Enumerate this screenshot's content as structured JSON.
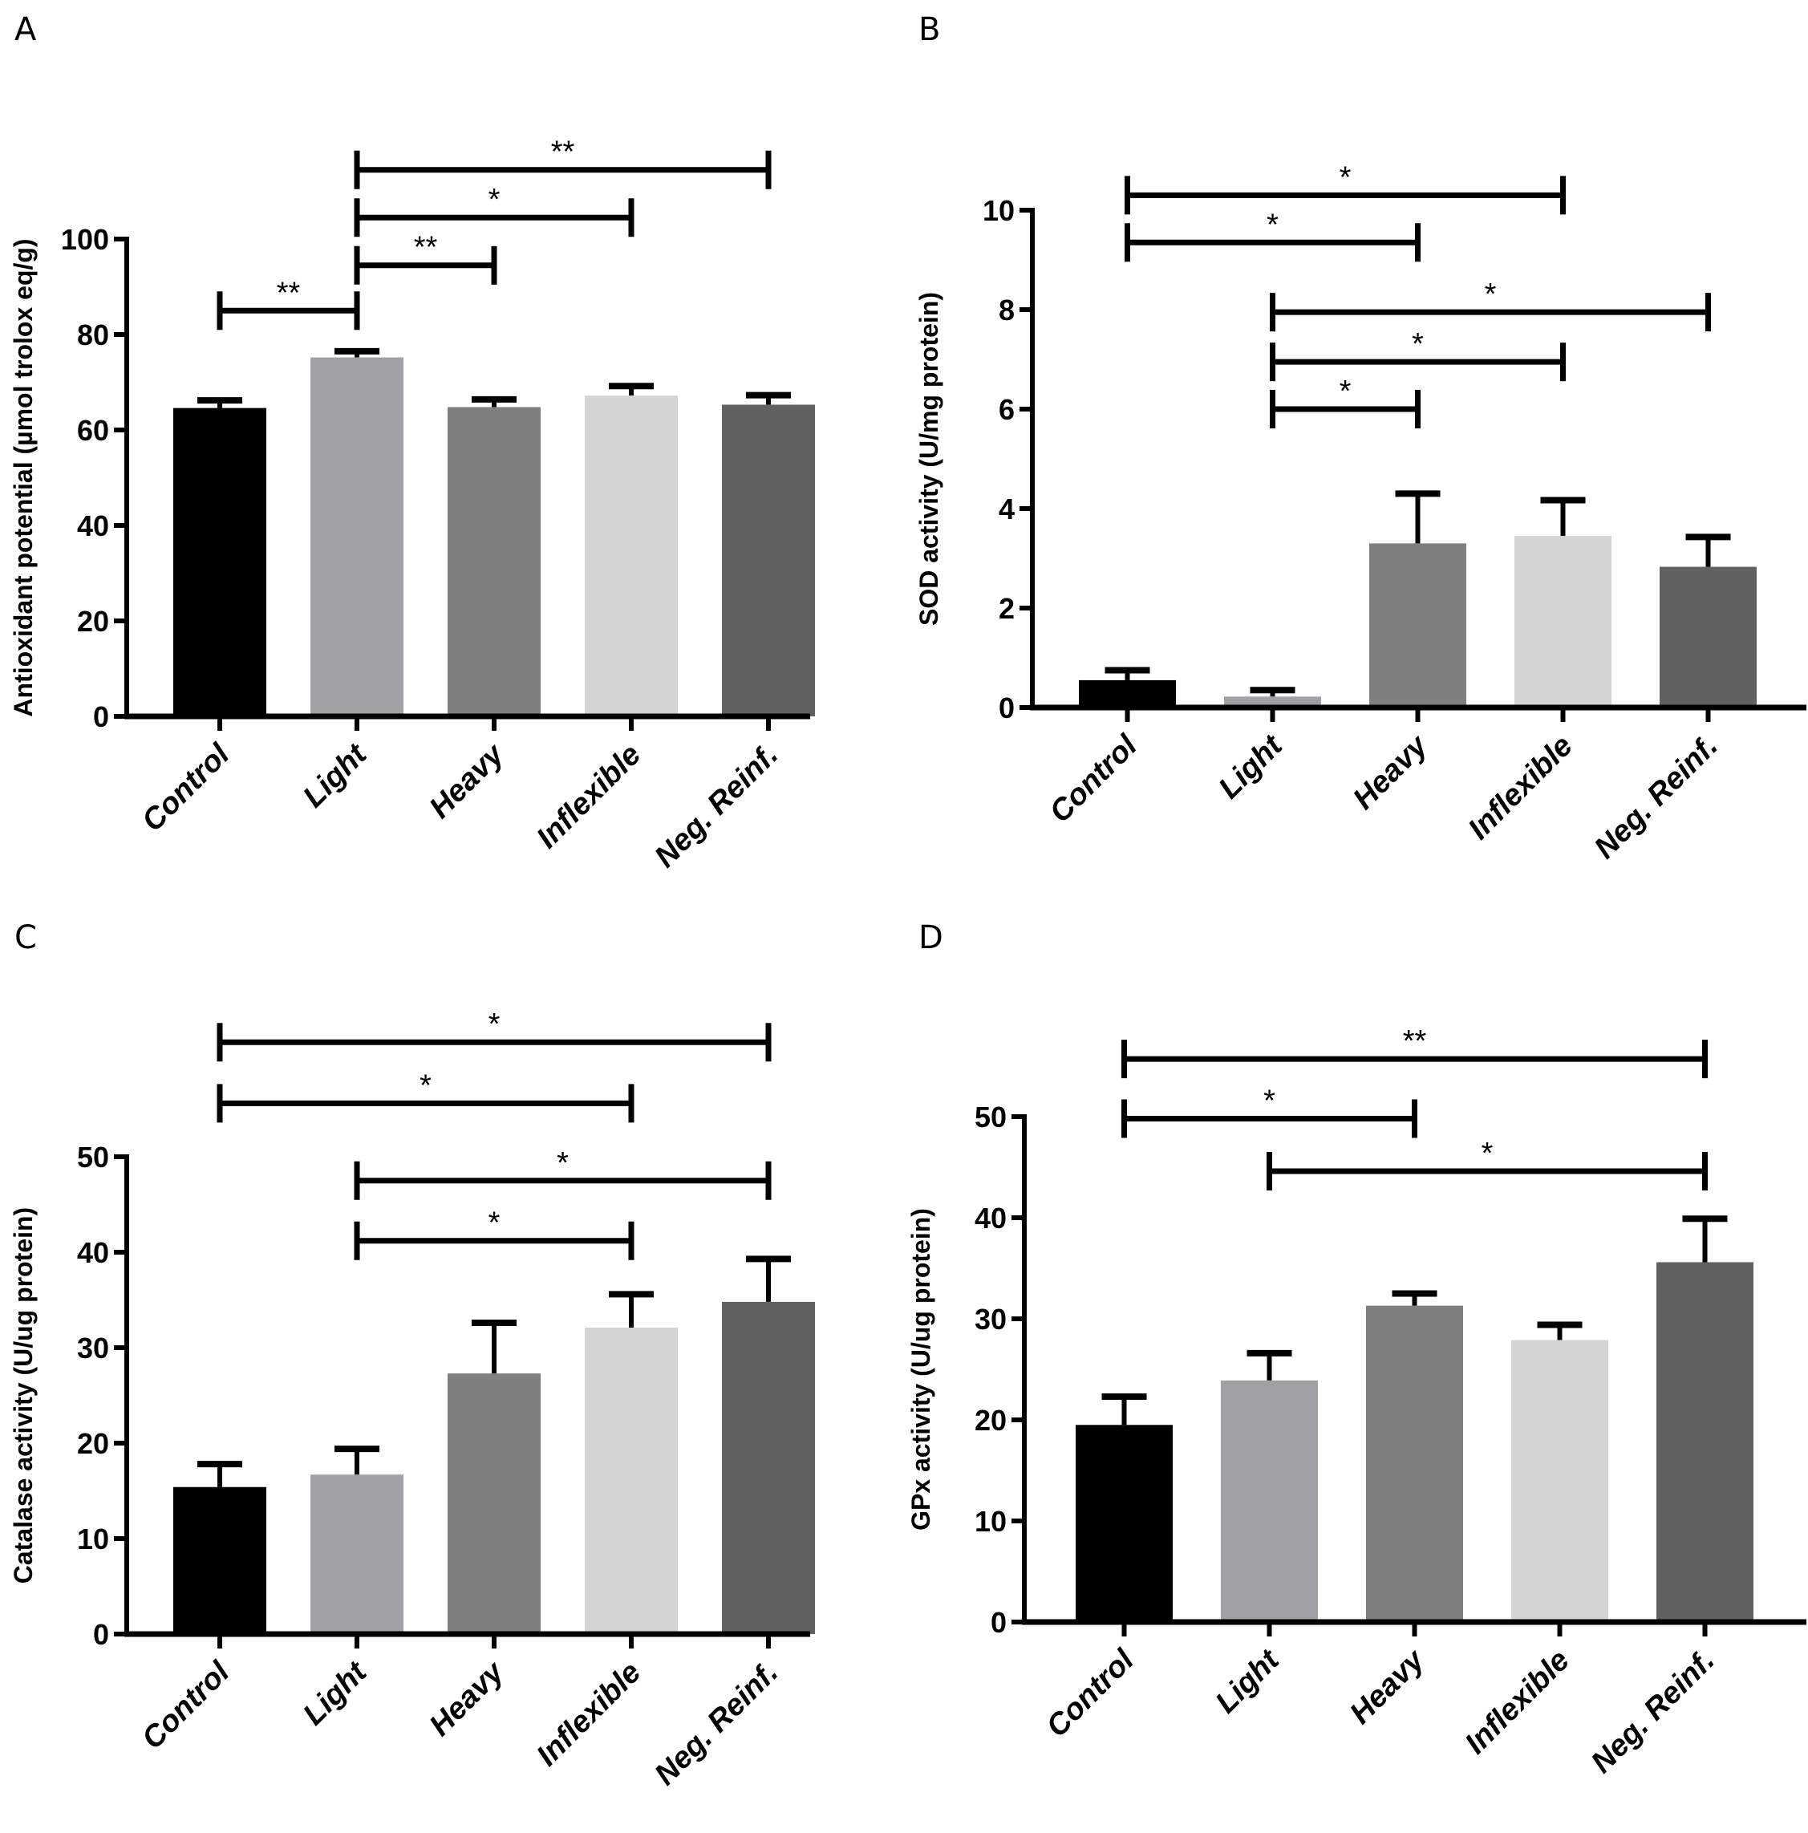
{
  "figure": {
    "panels": [
      "A",
      "B",
      "C",
      "D"
    ]
  },
  "chart_data": [
    {
      "panel_label": "A",
      "type": "bar",
      "title": "",
      "xlabel": "",
      "ylabel": "Antioxidant potential (µmol trolox eq/g)",
      "categories": [
        "Control",
        "Light",
        "Heavy",
        "Inflexible",
        "Neg. Reinf."
      ],
      "values": [
        64.6,
        75.2,
        64.8,
        67.2,
        65.3
      ],
      "errors": [
        1.6,
        1.3,
        1.6,
        2.0,
        2.0
      ],
      "colors": [
        "#000000",
        "#a1a1a5",
        "#7f7f7f",
        "#d4d4d4",
        "#616161"
      ],
      "ylim": [
        0,
        100
      ],
      "yticks": [
        0,
        20,
        40,
        60,
        80,
        100
      ],
      "grid": false,
      "significance": [
        {
          "from": 0,
          "to": 1,
          "y": 85,
          "label": "**"
        },
        {
          "from": 1,
          "to": 2,
          "y": 94.5,
          "label": "**"
        },
        {
          "from": 1,
          "to": 3,
          "y": 104.5,
          "label": "*"
        },
        {
          "from": 1,
          "to": 4,
          "y": 114.5,
          "label": "**"
        }
      ]
    },
    {
      "panel_label": "B",
      "type": "bar",
      "title": "",
      "xlabel": "",
      "ylabel": "SOD activity (U/mg protein)",
      "categories": [
        "Control",
        "Light",
        "Heavy",
        "Inflexible",
        "Neg. Reinf."
      ],
      "values": [
        0.55,
        0.22,
        3.3,
        3.45,
        2.83
      ],
      "errors": [
        0.2,
        0.13,
        1.0,
        0.72,
        0.6
      ],
      "colors": [
        "#000000",
        "#a1a1a5",
        "#7f7f7f",
        "#d4d4d4",
        "#616161"
      ],
      "ylim": [
        0,
        10
      ],
      "yticks": [
        0,
        2,
        4,
        6,
        8,
        10
      ],
      "grid": false,
      "significance": [
        {
          "from": 0,
          "to": 3,
          "y": 10.3,
          "label": "*"
        },
        {
          "from": 0,
          "to": 2,
          "y": 9.35,
          "label": "*"
        },
        {
          "from": 1,
          "to": 4,
          "y": 7.95,
          "label": "*"
        },
        {
          "from": 1,
          "to": 3,
          "y": 6.95,
          "label": "*"
        },
        {
          "from": 1,
          "to": 2,
          "y": 6.0,
          "label": "*"
        }
      ]
    },
    {
      "panel_label": "C",
      "type": "bar",
      "title": "",
      "xlabel": "",
      "ylabel": "Catalase activity (U/ug protein)",
      "categories": [
        "Control",
        "Light",
        "Heavy",
        "Inflexible",
        "Neg. Reinf."
      ],
      "values": [
        15.4,
        16.7,
        27.3,
        32.1,
        34.8
      ],
      "errors": [
        2.4,
        2.7,
        5.3,
        3.5,
        4.5
      ],
      "colors": [
        "#000000",
        "#a1a1a5",
        "#7f7f7f",
        "#d4d4d4",
        "#616161"
      ],
      "ylim": [
        0,
        50
      ],
      "yticks": [
        0,
        10,
        20,
        30,
        40,
        50
      ],
      "grid": false,
      "significance": [
        {
          "from": 0,
          "to": 4,
          "y": 62,
          "label": "*"
        },
        {
          "from": 0,
          "to": 3,
          "y": 55.6,
          "label": "*"
        },
        {
          "from": 1,
          "to": 4,
          "y": 47.5,
          "label": "*"
        },
        {
          "from": 1,
          "to": 3,
          "y": 41.2,
          "label": "*"
        }
      ]
    },
    {
      "panel_label": "D",
      "type": "bar",
      "title": "",
      "xlabel": "",
      "ylabel": "GPx activity (U/ug protein)",
      "categories": [
        "Control",
        "Light",
        "Heavy",
        "Inflexible",
        "Neg. Reinf."
      ],
      "values": [
        19.5,
        23.9,
        31.3,
        27.9,
        35.6
      ],
      "errors": [
        2.8,
        2.7,
        1.2,
        1.5,
        4.3
      ],
      "colors": [
        "#000000",
        "#a1a1a5",
        "#7f7f7f",
        "#d4d4d4",
        "#616161"
      ],
      "ylim": [
        0,
        50
      ],
      "yticks": [
        0,
        10,
        20,
        30,
        40,
        50
      ],
      "grid": false,
      "significance": [
        {
          "from": 0,
          "to": 4,
          "y": 55.7,
          "label": "**"
        },
        {
          "from": 0,
          "to": 2,
          "y": 49.8,
          "label": "*"
        },
        {
          "from": 1,
          "to": 4,
          "y": 44.6,
          "label": "*"
        }
      ]
    }
  ]
}
